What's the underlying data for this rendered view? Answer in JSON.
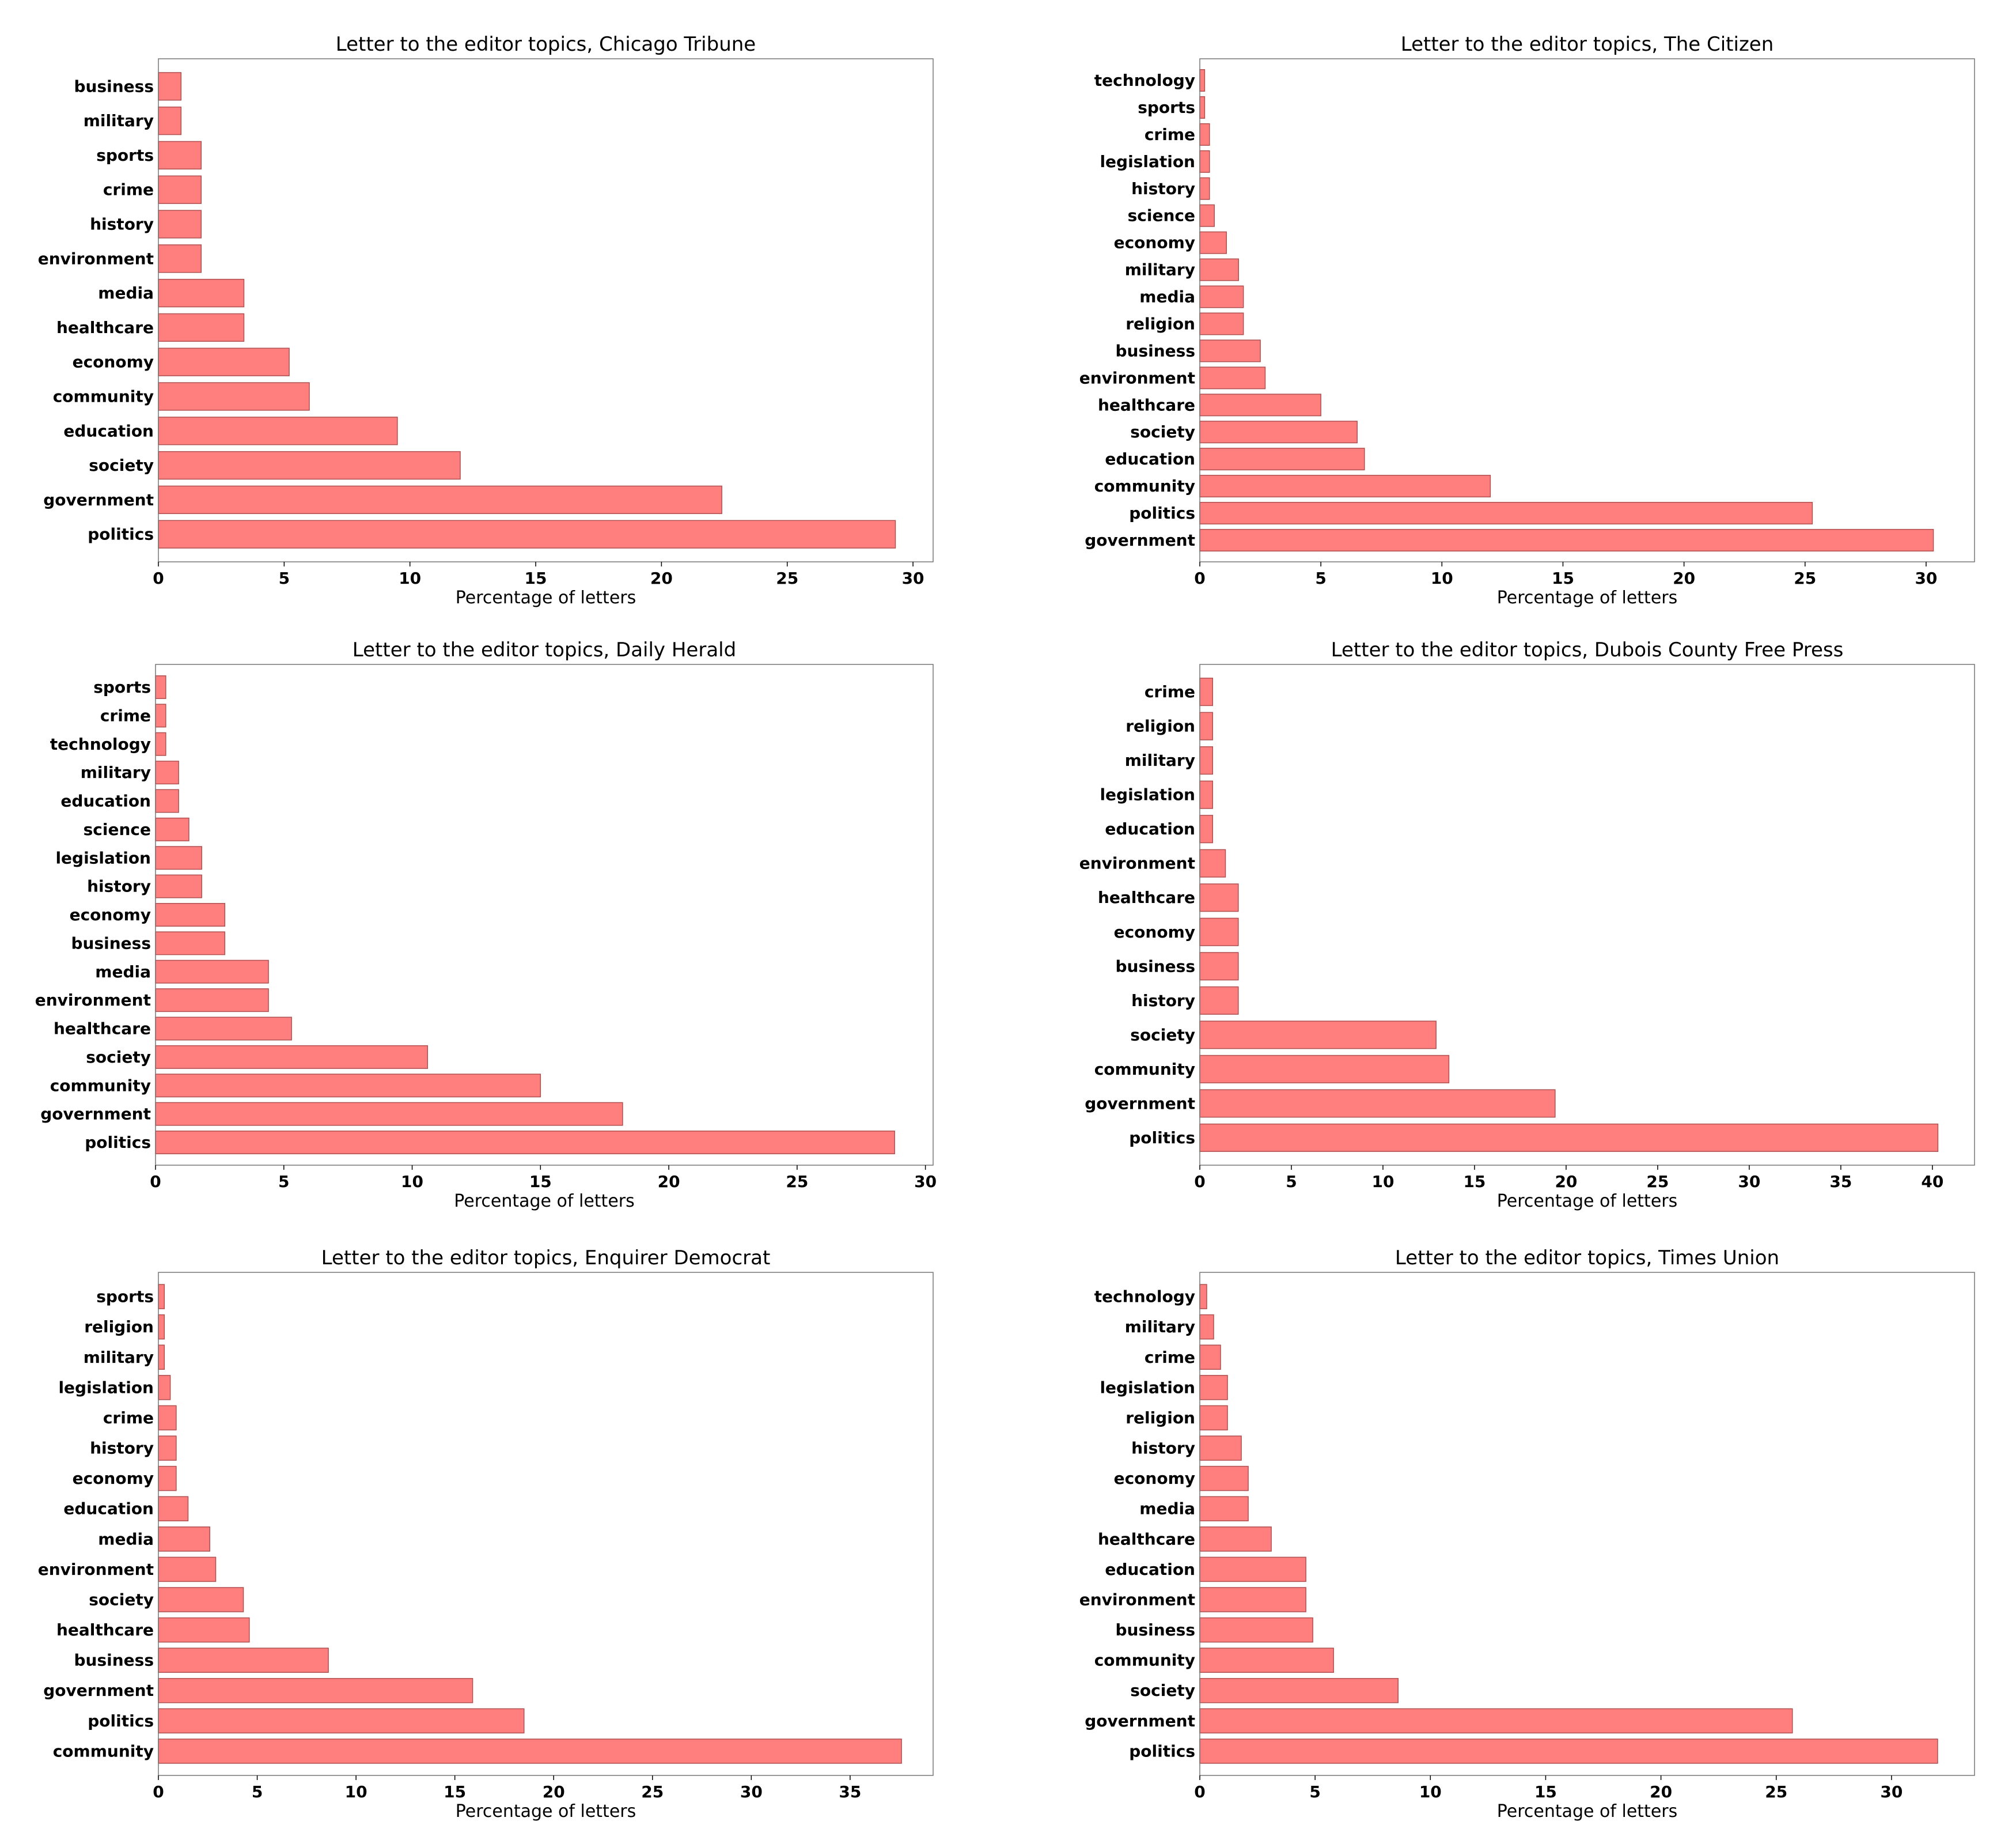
{
  "chart_data": [
    {
      "type": "bar",
      "orientation": "horizontal",
      "title": "Letter to the editor topics, Chicago Tribune",
      "xlabel": "Percentage of letters",
      "xlim": [
        0,
        30.8
      ],
      "xticks": [
        0,
        5,
        10,
        15,
        20,
        25,
        30
      ],
      "categories": [
        "business",
        "military",
        "sports",
        "crime",
        "history",
        "environment",
        "media",
        "healthcare",
        "economy",
        "community",
        "education",
        "society",
        "government",
        "politics"
      ],
      "values": [
        0.9,
        0.9,
        1.7,
        1.7,
        1.7,
        1.7,
        3.4,
        3.4,
        5.2,
        6.0,
        9.5,
        12.0,
        22.4,
        29.3
      ],
      "color": "#ff7f7f"
    },
    {
      "type": "bar",
      "orientation": "horizontal",
      "title": "Letter to the editor topics, The Citizen",
      "xlabel": "Percentage of letters",
      "xlim": [
        0,
        32
      ],
      "xticks": [
        0,
        5,
        10,
        15,
        20,
        25,
        30
      ],
      "categories": [
        "technology",
        "sports",
        "crime",
        "legislation",
        "history",
        "science",
        "economy",
        "military",
        "media",
        "religion",
        "business",
        "environment",
        "healthcare",
        "society",
        "education",
        "community",
        "politics",
        "government"
      ],
      "values": [
        0.2,
        0.2,
        0.4,
        0.4,
        0.4,
        0.6,
        1.1,
        1.6,
        1.8,
        1.8,
        2.5,
        2.7,
        5.0,
        6.5,
        6.8,
        12.0,
        25.3,
        30.3
      ],
      "color": "#ff7f7f"
    },
    {
      "type": "bar",
      "orientation": "horizontal",
      "title": "Letter to the editor topics, Daily Herald",
      "xlabel": "Percentage of letters",
      "xlim": [
        0,
        30.3
      ],
      "xticks": [
        0,
        5,
        10,
        15,
        20,
        25,
        30
      ],
      "categories": [
        "sports",
        "crime",
        "technology",
        "military",
        "education",
        "science",
        "legislation",
        "history",
        "economy",
        "business",
        "media",
        "environment",
        "healthcare",
        "society",
        "community",
        "government",
        "politics"
      ],
      "values": [
        0.4,
        0.4,
        0.4,
        0.9,
        0.9,
        1.3,
        1.8,
        1.8,
        2.7,
        2.7,
        4.4,
        4.4,
        5.3,
        10.6,
        15.0,
        18.2,
        28.8
      ],
      "color": "#ff7f7f"
    },
    {
      "type": "bar",
      "orientation": "horizontal",
      "title": "Letter to the editor topics, Dubois County Free Press",
      "xlabel": "Percentage of letters",
      "xlim": [
        0,
        42.3
      ],
      "xticks": [
        0,
        5,
        10,
        15,
        20,
        25,
        30,
        35,
        40
      ],
      "categories": [
        "crime",
        "religion",
        "military",
        "legislation",
        "education",
        "environment",
        "healthcare",
        "economy",
        "business",
        "history",
        "society",
        "community",
        "government",
        "politics"
      ],
      "values": [
        0.7,
        0.7,
        0.7,
        0.7,
        0.7,
        1.4,
        2.1,
        2.1,
        2.1,
        2.1,
        12.9,
        13.6,
        19.4,
        40.3
      ],
      "color": "#ff7f7f"
    },
    {
      "type": "bar",
      "orientation": "horizontal",
      "title": "Letter to the editor topics, Enquirer Democrat",
      "xlabel": "Percentage of letters",
      "xlim": [
        0,
        39.2
      ],
      "xticks": [
        0,
        5,
        10,
        15,
        20,
        25,
        30,
        35
      ],
      "categories": [
        "sports",
        "religion",
        "military",
        "legislation",
        "crime",
        "history",
        "economy",
        "education",
        "media",
        "environment",
        "society",
        "healthcare",
        "business",
        "government",
        "politics",
        "community"
      ],
      "values": [
        0.3,
        0.3,
        0.3,
        0.6,
        0.9,
        0.9,
        0.9,
        1.5,
        2.6,
        2.9,
        4.3,
        4.6,
        8.6,
        15.9,
        18.5,
        37.6
      ],
      "color": "#ff7f7f"
    },
    {
      "type": "bar",
      "orientation": "horizontal",
      "title": "Letter to the editor topics, Times Union",
      "xlabel": "Percentage of letters",
      "xlim": [
        0,
        33.6
      ],
      "xticks": [
        0,
        5,
        10,
        15,
        20,
        25,
        30
      ],
      "categories": [
        "technology",
        "military",
        "crime",
        "legislation",
        "religion",
        "history",
        "economy",
        "media",
        "healthcare",
        "education",
        "environment",
        "business",
        "community",
        "society",
        "government",
        "politics"
      ],
      "values": [
        0.3,
        0.6,
        0.9,
        1.2,
        1.2,
        1.8,
        2.1,
        2.1,
        3.1,
        4.6,
        4.6,
        4.9,
        5.8,
        8.6,
        25.7,
        32.0
      ],
      "color": "#ff7f7f"
    }
  ]
}
